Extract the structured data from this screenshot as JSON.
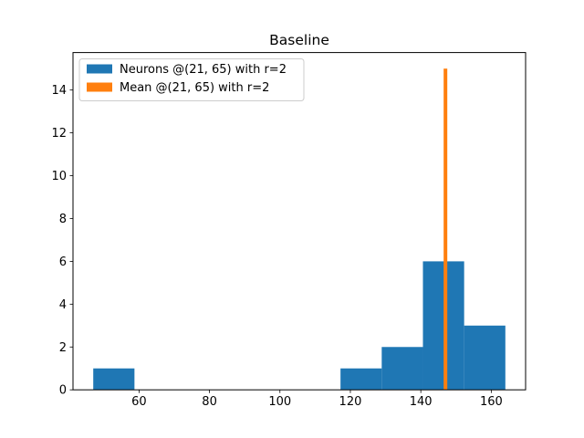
{
  "chart_data": {
    "type": "bar",
    "title": "Baseline",
    "xlabel": "",
    "ylabel": "",
    "xlim": [
      41.25,
      169.75
    ],
    "ylim": [
      0,
      15.75
    ],
    "xticks": [
      60,
      80,
      100,
      120,
      140,
      160
    ],
    "yticks": [
      0,
      2,
      4,
      6,
      8,
      10,
      12,
      14
    ],
    "grid": false,
    "legend_position": "upper-left",
    "series": [
      {
        "name": "Neurons @(21, 65) with r=2",
        "kind": "histogram",
        "color": "#1f77b4",
        "bins": [
          {
            "x0": 47.0,
            "x1": 58.7,
            "count": 1
          },
          {
            "x0": 58.7,
            "x1": 70.4,
            "count": 0
          },
          {
            "x0": 70.4,
            "x1": 82.1,
            "count": 0
          },
          {
            "x0": 82.1,
            "x1": 93.8,
            "count": 0
          },
          {
            "x0": 93.8,
            "x1": 105.5,
            "count": 0
          },
          {
            "x0": 105.5,
            "x1": 117.2,
            "count": 0
          },
          {
            "x0": 117.2,
            "x1": 128.9,
            "count": 1
          },
          {
            "x0": 128.9,
            "x1": 140.6,
            "count": 2
          },
          {
            "x0": 140.6,
            "x1": 152.3,
            "count": 6
          },
          {
            "x0": 152.3,
            "x1": 164.0,
            "count": 3
          }
        ]
      },
      {
        "name": "Mean @(21, 65) with r=2",
        "kind": "vertical-bar",
        "color": "#ff7f0e",
        "x": 147.0,
        "height": 15
      }
    ]
  }
}
